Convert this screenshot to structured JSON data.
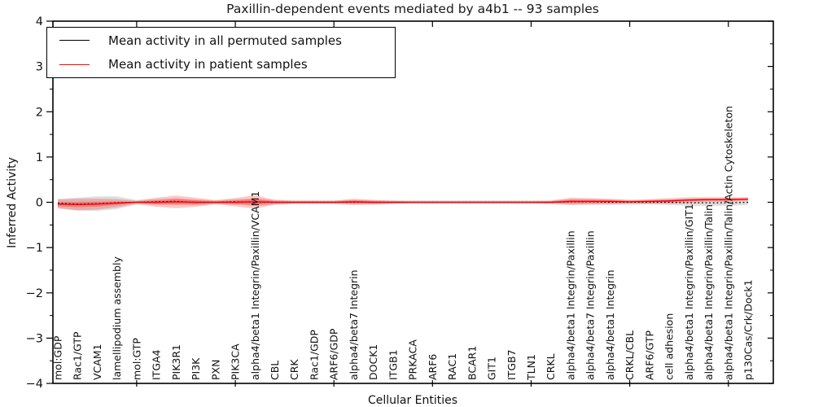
{
  "figure": {
    "title": "Paxillin-dependent events mediated by a4b1 -- 93 samples",
    "xlabel": "Cellular Entities",
    "ylabel": "Inferred Activity"
  },
  "legend": {
    "entries": [
      {
        "label": "Mean activity in all permuted samples",
        "color": "#000000"
      },
      {
        "label": "Mean activity in patient samples",
        "color": "#ff0000"
      }
    ]
  },
  "chart_data": {
    "type": "line",
    "title": "Paxillin-dependent events mediated by a4b1 -- 93 samples",
    "xlabel": "Cellular Entities",
    "ylabel": "Inferred Activity",
    "ylim": [
      -4,
      4
    ],
    "yticks": [
      4,
      3,
      2,
      1,
      0,
      -1,
      -2,
      -3,
      -4
    ],
    "y_minor_step": 0.5,
    "grid": false,
    "legend_position": "upper left",
    "categories": [
      "mol:GDP",
      "Rac1/GTP",
      "VCAM1",
      "lamellipodium assembly",
      "mol:GTP",
      "ITGA4",
      "PIK3R1",
      "PI3K",
      "PXN",
      "PIK3CA",
      "alpha4/beta1 Integrin/Paxillin/VCAM1",
      "CBL",
      "CRK",
      "Rac1/GDP",
      "ARF6/GDP",
      "alpha4/beta7 Integrin",
      "DOCK1",
      "ITGB1",
      "PRKACA",
      "ARF6",
      "RAC1",
      "BCAR1",
      "GIT1",
      "ITGB7",
      "TLN1",
      "CRKL",
      "alpha4/beta1 Integrin/Paxillin",
      "alpha4/beta7 Integrin/Paxillin",
      "alpha4/beta1 Integrin",
      "CRKL/CBL",
      "ARF6/GTP",
      "cell adhesion",
      "alpha4/beta1 Integrin/Paxillin/GIT1",
      "alpha4/beta1 Integrin/Paxillin/Talin",
      "alpha4/beta1 Integrin/Paxillin/Talin/Actin Cytoskeleton",
      "p130Cas/Crk/Dock1"
    ],
    "major_x_tick_indices": [
      4,
      9,
      14,
      19,
      24,
      29,
      34
    ],
    "series": [
      {
        "name": "Mean activity in all permuted samples",
        "color": "#000000",
        "line_style": "dotted",
        "band_color": "rgba(0,0,0,0.13)",
        "values": [
          -0.02,
          -0.04,
          -0.03,
          -0.01,
          0,
          0.01,
          0.02,
          0,
          0,
          0.01,
          0,
          0,
          0,
          0,
          0,
          0,
          0,
          0,
          0,
          0,
          0,
          0,
          0,
          0,
          0,
          0,
          0.01,
          0.01,
          0,
          0,
          0,
          0,
          -0.01,
          -0.01,
          -0.01,
          0
        ],
        "band_halfwidth": [
          0.1,
          0.14,
          0.16,
          0.14,
          0.05,
          0.06,
          0.07,
          0.06,
          0.05,
          0.06,
          0.08,
          0.06,
          0.04,
          0.04,
          0.04,
          0.05,
          0.05,
          0.04,
          0.04,
          0.04,
          0.04,
          0.04,
          0.04,
          0.04,
          0.04,
          0.04,
          0.06,
          0.06,
          0.06,
          0.05,
          0.05,
          0.06,
          0.07,
          0.07,
          0.07,
          0.06
        ]
      },
      {
        "name": "Mean activity in patient samples",
        "color": "#ff0000",
        "line_style": "solid",
        "band_color": "rgba(255,0,0,0.22)",
        "band_inner_color": "rgba(255,0,0,0.28)",
        "values": [
          -0.04,
          -0.05,
          -0.04,
          -0.02,
          0,
          0,
          0.01,
          0,
          0,
          0,
          0.01,
          0,
          0,
          0,
          0,
          0.01,
          0,
          0,
          0,
          0,
          0,
          0,
          0,
          0,
          0,
          0,
          0.02,
          0.02,
          0.02,
          0.01,
          0.02,
          0.03,
          0.05,
          0.06,
          0.06,
          0.07
        ],
        "band_halfwidth": [
          0.1,
          0.13,
          0.12,
          0.09,
          0.03,
          0.1,
          0.14,
          0.1,
          0.04,
          0.09,
          0.15,
          0.05,
          0.03,
          0.03,
          0.03,
          0.07,
          0.05,
          0.03,
          0.02,
          0.02,
          0.02,
          0.02,
          0.02,
          0.02,
          0.02,
          0.03,
          0.08,
          0.07,
          0.06,
          0.04,
          0.05,
          0.06,
          0.06,
          0.05,
          0.05,
          0.04
        ]
      }
    ]
  }
}
